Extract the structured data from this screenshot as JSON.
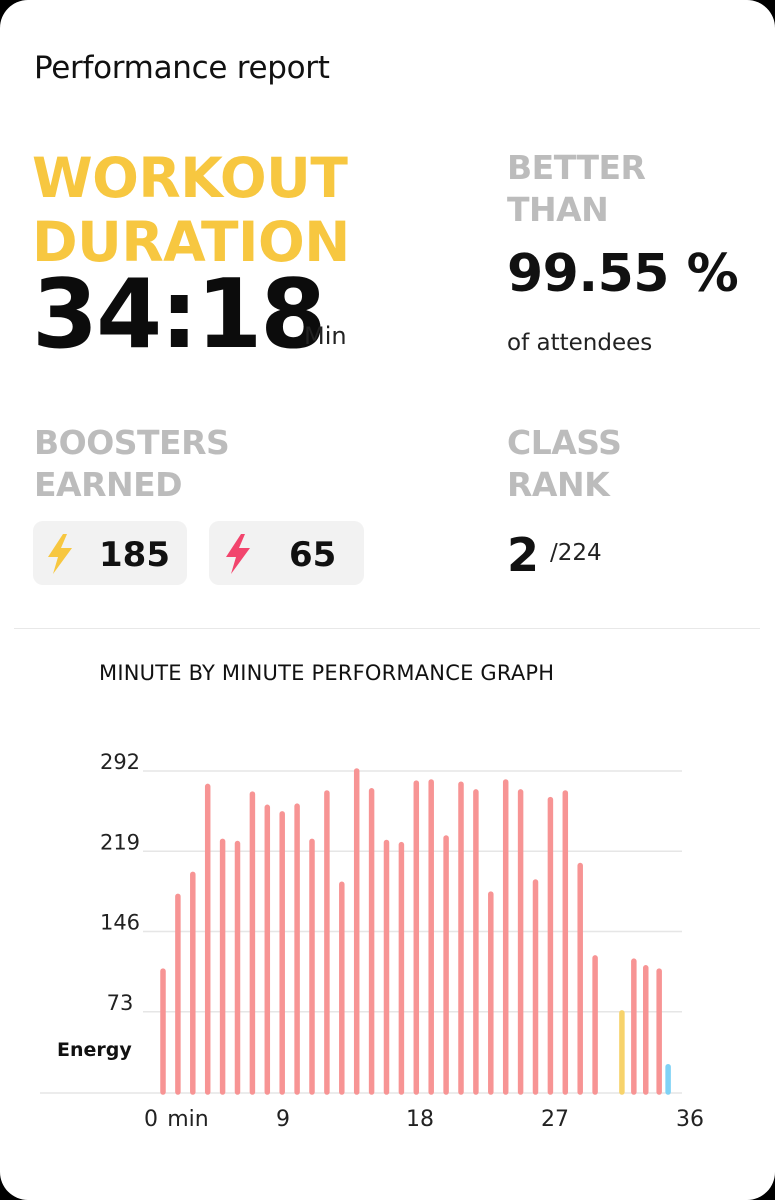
{
  "report": {
    "title": "Performance report"
  },
  "workout": {
    "label_line1": "WORKOUT",
    "label_line2": "DURATION",
    "value": "34:18",
    "unit": "Min"
  },
  "better_than": {
    "label_line1": "BETTER",
    "label_line2": "THAN",
    "value": "99.55 %",
    "sub": "of attendees"
  },
  "boosters": {
    "label_line1": "BOOSTERS",
    "label_line2": "EARNED",
    "items": [
      {
        "icon": "lightning-bolt-icon",
        "color": "#f7c740",
        "value": "185"
      },
      {
        "icon": "lightning-bolt-icon",
        "color": "#f2456d",
        "value": "65"
      }
    ]
  },
  "class_rank": {
    "label_line1": "CLASS",
    "label_line2": "RANK",
    "value": "2",
    "total": "/224"
  },
  "graph": {
    "title": "MINUTE BY MINUTE PERFORMANCE GRAPH",
    "energy_label": "Energy"
  },
  "chart_data": {
    "type": "bar",
    "ylabel": "Energy",
    "ylim": [
      0,
      292
    ],
    "yticks": [
      "292",
      "219",
      "146",
      "73"
    ],
    "xticks": [
      "0",
      "9",
      "18",
      "27",
      "36"
    ],
    "x_unit_label": "min",
    "xlim": [
      0,
      36
    ],
    "grid": true,
    "colors": {
      "default": "#f79494",
      "yellow": "#f7d36b",
      "blue": "#7fd2f5"
    },
    "values": [
      110,
      178,
      198,
      278,
      228,
      226,
      271,
      259,
      253,
      260,
      228,
      272,
      189,
      292,
      274,
      227,
      225,
      281,
      282,
      231,
      280,
      273,
      180,
      282,
      273,
      191,
      266,
      272,
      206,
      122,
      119,
      113,
      110,
      72,
      23
    ],
    "bar_colors": [
      "default",
      "default",
      "default",
      "default",
      "default",
      "default",
      "default",
      "default",
      "default",
      "default",
      "default",
      "default",
      "default",
      "default",
      "default",
      "default",
      "default",
      "default",
      "default",
      "default",
      "default",
      "default",
      "default",
      "default",
      "default",
      "default",
      "default",
      "default",
      "default",
      "default",
      "default",
      "default",
      "default",
      "yellow",
      "blue"
    ],
    "order_note_x": [
      0.5,
      1.5,
      2.5,
      3.5,
      4.5,
      5.5,
      6.5,
      7.5,
      8.5,
      9.5,
      10.5,
      11.5,
      12.5,
      13.5,
      14.5,
      15.5,
      16.5,
      17.5,
      18.5,
      19.5,
      20.5,
      21.5,
      22.5,
      23.5,
      24.5,
      25.5,
      26.5,
      27.5,
      28.5,
      29.5,
      31.5,
      32.5,
      33.5,
      31.5,
      34.5
    ]
  }
}
